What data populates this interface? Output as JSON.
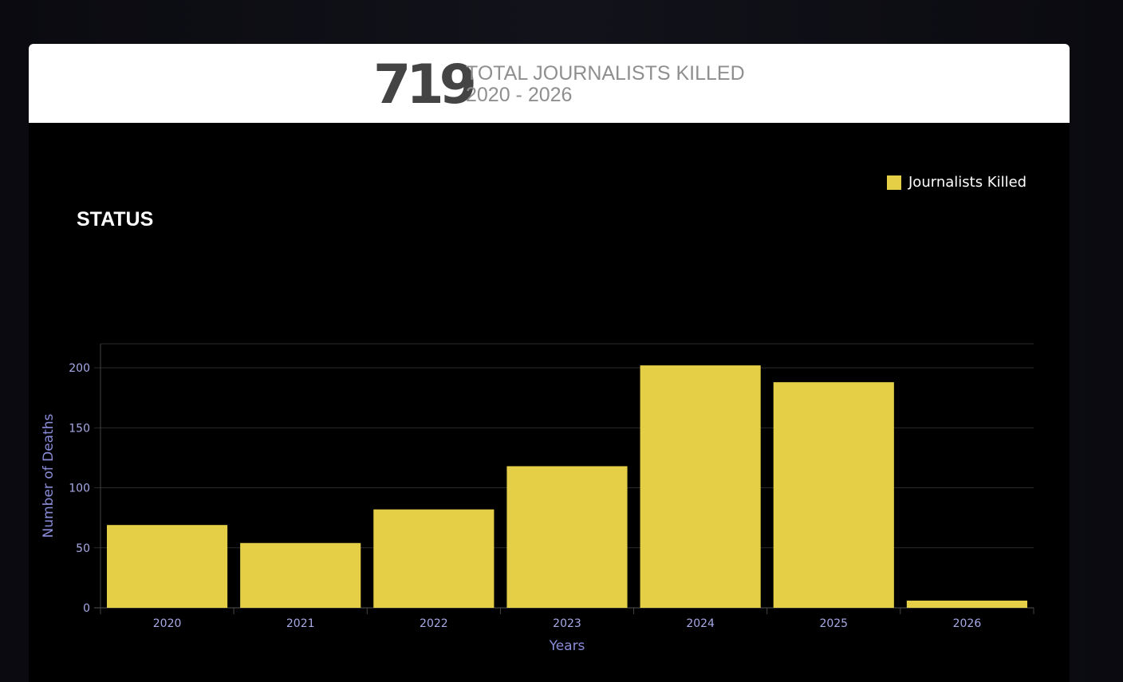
{
  "header": {
    "total": "719",
    "line1": "TOTAL JOURNALISTS KILLED",
    "line2": "2020 - 2026"
  },
  "section_title": "STATUS",
  "colors": {
    "bar": "#e5cf47",
    "axis_text": "#a7a9e6",
    "grid": "#2a2a2a",
    "background": "#000000"
  },
  "chart_data": {
    "type": "bar",
    "categories": [
      "2020",
      "2021",
      "2022",
      "2023",
      "2024",
      "2025",
      "2026"
    ],
    "series": [
      {
        "name": "Journalists Killed",
        "values": [
          69,
          54,
          82,
          118,
          202,
          188,
          6
        ]
      }
    ],
    "xlabel": "Years",
    "ylabel": "Number of Deaths",
    "ylim": [
      0,
      220
    ],
    "yticks": [
      0,
      50,
      100,
      150,
      200
    ],
    "grid": true,
    "legend": "top-right"
  }
}
